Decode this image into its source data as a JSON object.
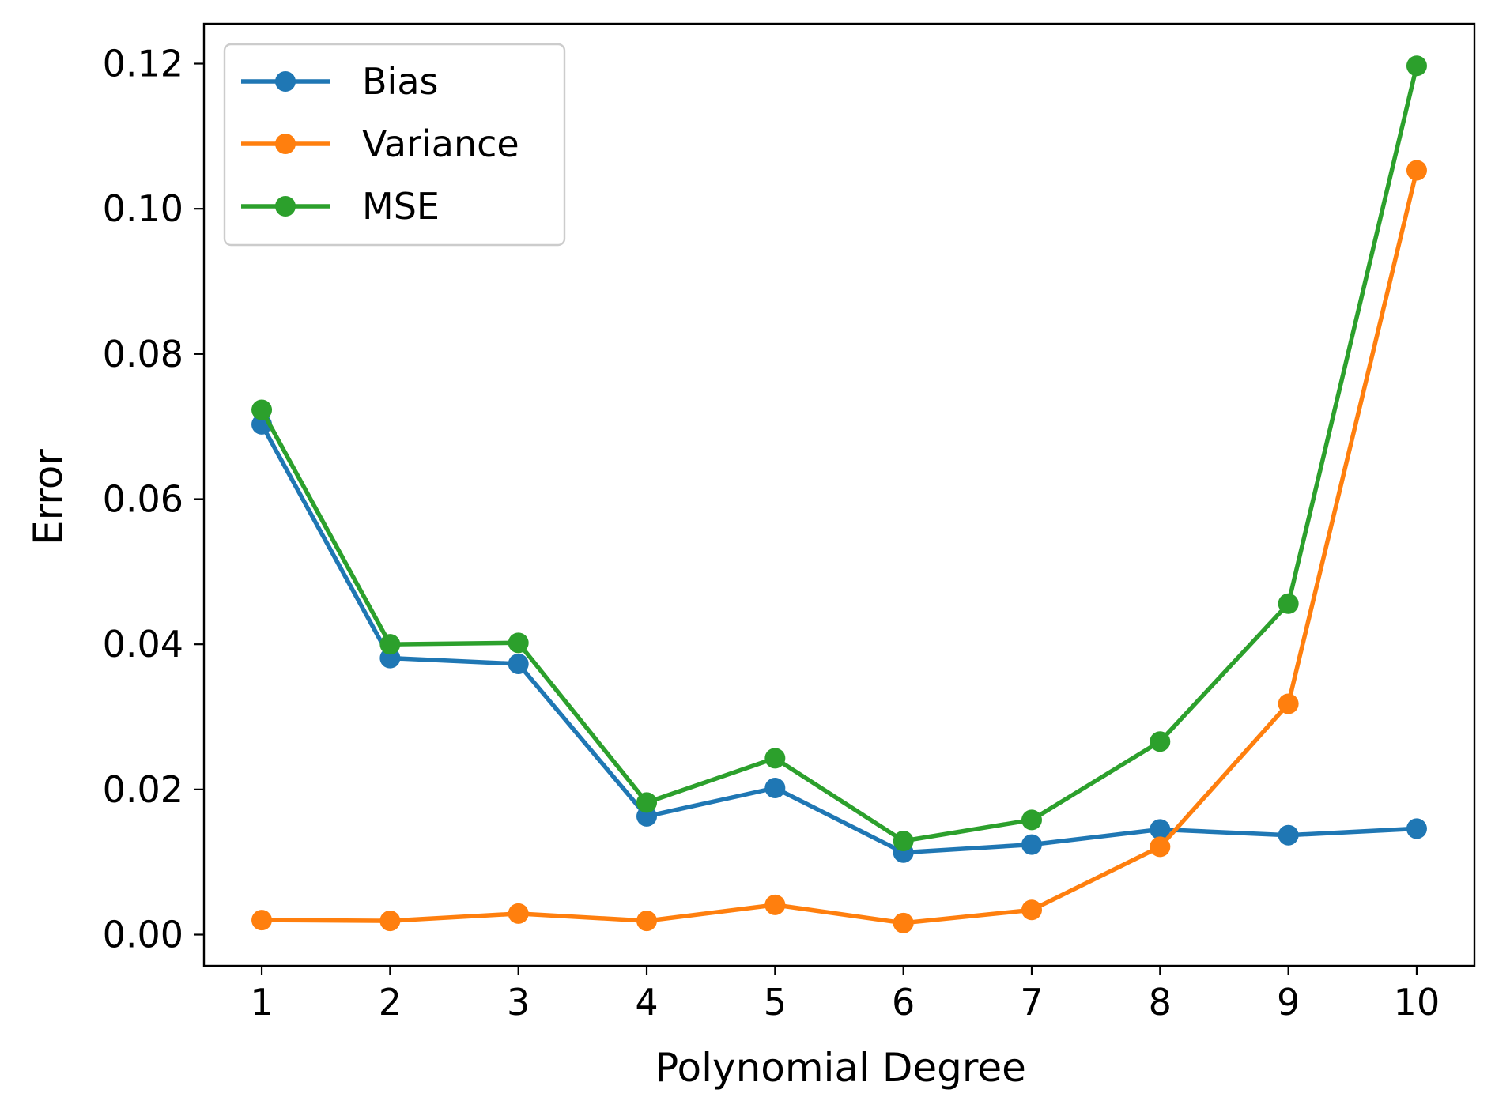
{
  "chart_data": {
    "type": "line",
    "xlabel": "Polynomial Degree",
    "ylabel": "Error",
    "x": [
      1,
      2,
      3,
      4,
      5,
      6,
      7,
      8,
      9,
      10
    ],
    "xticks": [
      "1",
      "2",
      "3",
      "4",
      "5",
      "6",
      "7",
      "8",
      "9",
      "10"
    ],
    "yticks": [
      "0.00",
      "0.02",
      "0.04",
      "0.06",
      "0.08",
      "0.10",
      "0.12"
    ],
    "ytick_values": [
      0.0,
      0.02,
      0.04,
      0.06,
      0.08,
      0.1,
      0.12
    ],
    "ylim": [
      -0.0043,
      0.1255
    ],
    "xlim": [
      0.55,
      10.45
    ],
    "grid": false,
    "legend_position": "upper-left",
    "series": [
      {
        "name": "Bias",
        "color": "#1f77b4",
        "values": [
          0.0703,
          0.0381,
          0.0373,
          0.0163,
          0.0202,
          0.0113,
          0.0124,
          0.0145,
          0.0137,
          0.0146
        ]
      },
      {
        "name": "Variance",
        "color": "#ff7f0e",
        "values": [
          0.002,
          0.0019,
          0.0029,
          0.0019,
          0.0041,
          0.0016,
          0.0034,
          0.0121,
          0.0318,
          0.1053
        ]
      },
      {
        "name": "MSE",
        "color": "#2ca02c",
        "values": [
          0.0723,
          0.04,
          0.0402,
          0.0182,
          0.0243,
          0.0129,
          0.0158,
          0.0266,
          0.0456,
          0.1197
        ]
      }
    ]
  }
}
